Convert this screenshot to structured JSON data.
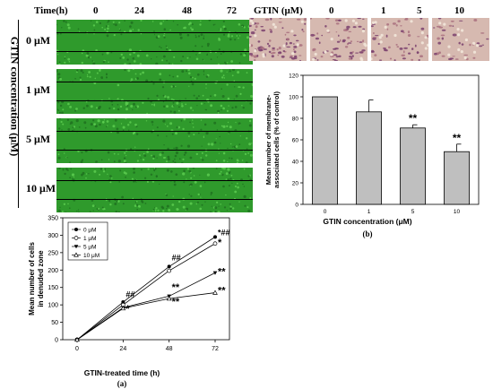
{
  "panel_a": {
    "time_header": "Time(h)",
    "time_points": [
      "0",
      "24",
      "48",
      "72"
    ],
    "concentration_axis_label": "GTIN concentration (μM)",
    "concentrations": [
      "0 μM",
      "1 μM",
      "5 μM",
      "10 μM"
    ],
    "caption": "(a)"
  },
  "panel_b": {
    "header_label": "GTIN (μM)",
    "concentrations": [
      "0",
      "1",
      "5",
      "10"
    ],
    "caption": "(b)"
  },
  "colors": {
    "micrograph_green": "#2f9a2c",
    "invasion_pink": "#d6b9b0",
    "bar_fill": "#bfbfbf"
  },
  "chart_data": [
    {
      "type": "line",
      "xlabel": "GTIN-treated time (h)",
      "ylabel": "Mean number of cells in denuded zone",
      "x": [
        0,
        24,
        48,
        72
      ],
      "xticks": [
        "0",
        "24",
        "48",
        "72"
      ],
      "ylim": [
        0,
        350
      ],
      "yticks": [
        "0",
        "50",
        "100",
        "150",
        "200",
        "250",
        "300",
        "350"
      ],
      "series": [
        {
          "name": "0 μM",
          "values": [
            0,
            108,
            210,
            295
          ],
          "marker": "circle-filled"
        },
        {
          "name": "1 μM",
          "values": [
            0,
            100,
            198,
            276
          ],
          "marker": "circle-open"
        },
        {
          "name": "5 μM",
          "values": [
            0,
            92,
            125,
            192
          ],
          "marker": "triangle-filled"
        },
        {
          "name": "10 μM",
          "values": [
            0,
            90,
            118,
            135
          ],
          "marker": "triangle-open"
        }
      ],
      "annotations": [
        {
          "text": "##",
          "x": 24,
          "y": 122
        },
        {
          "text": "*",
          "x": 24,
          "y": 80
        },
        {
          "text": "##",
          "x": 48,
          "y": 228
        },
        {
          "text": "**",
          "x": 48,
          "y": 142
        },
        {
          "text": "**",
          "x": 48,
          "y": 100
        },
        {
          "text": "*##",
          "x": 72,
          "y": 300
        },
        {
          "text": "*",
          "x": 72,
          "y": 270
        },
        {
          "text": "**",
          "x": 72,
          "y": 186
        },
        {
          "text": "**",
          "x": 72,
          "y": 132
        }
      ],
      "legend": "top-left",
      "grid": false
    },
    {
      "type": "bar",
      "xlabel": "GTIN concentration (μM)",
      "ylabel": "Mean number of membrane-associated cells (% of control)",
      "categories": [
        "0",
        "1",
        "5",
        "10"
      ],
      "values": [
        100,
        86,
        71,
        49
      ],
      "errors": [
        0,
        11,
        3,
        7
      ],
      "ylim": [
        0,
        120
      ],
      "yticks": [
        "0",
        "20",
        "40",
        "60",
        "80",
        "100",
        "120"
      ],
      "significance": [
        "",
        "",
        "**",
        "**"
      ],
      "grid": false
    }
  ]
}
